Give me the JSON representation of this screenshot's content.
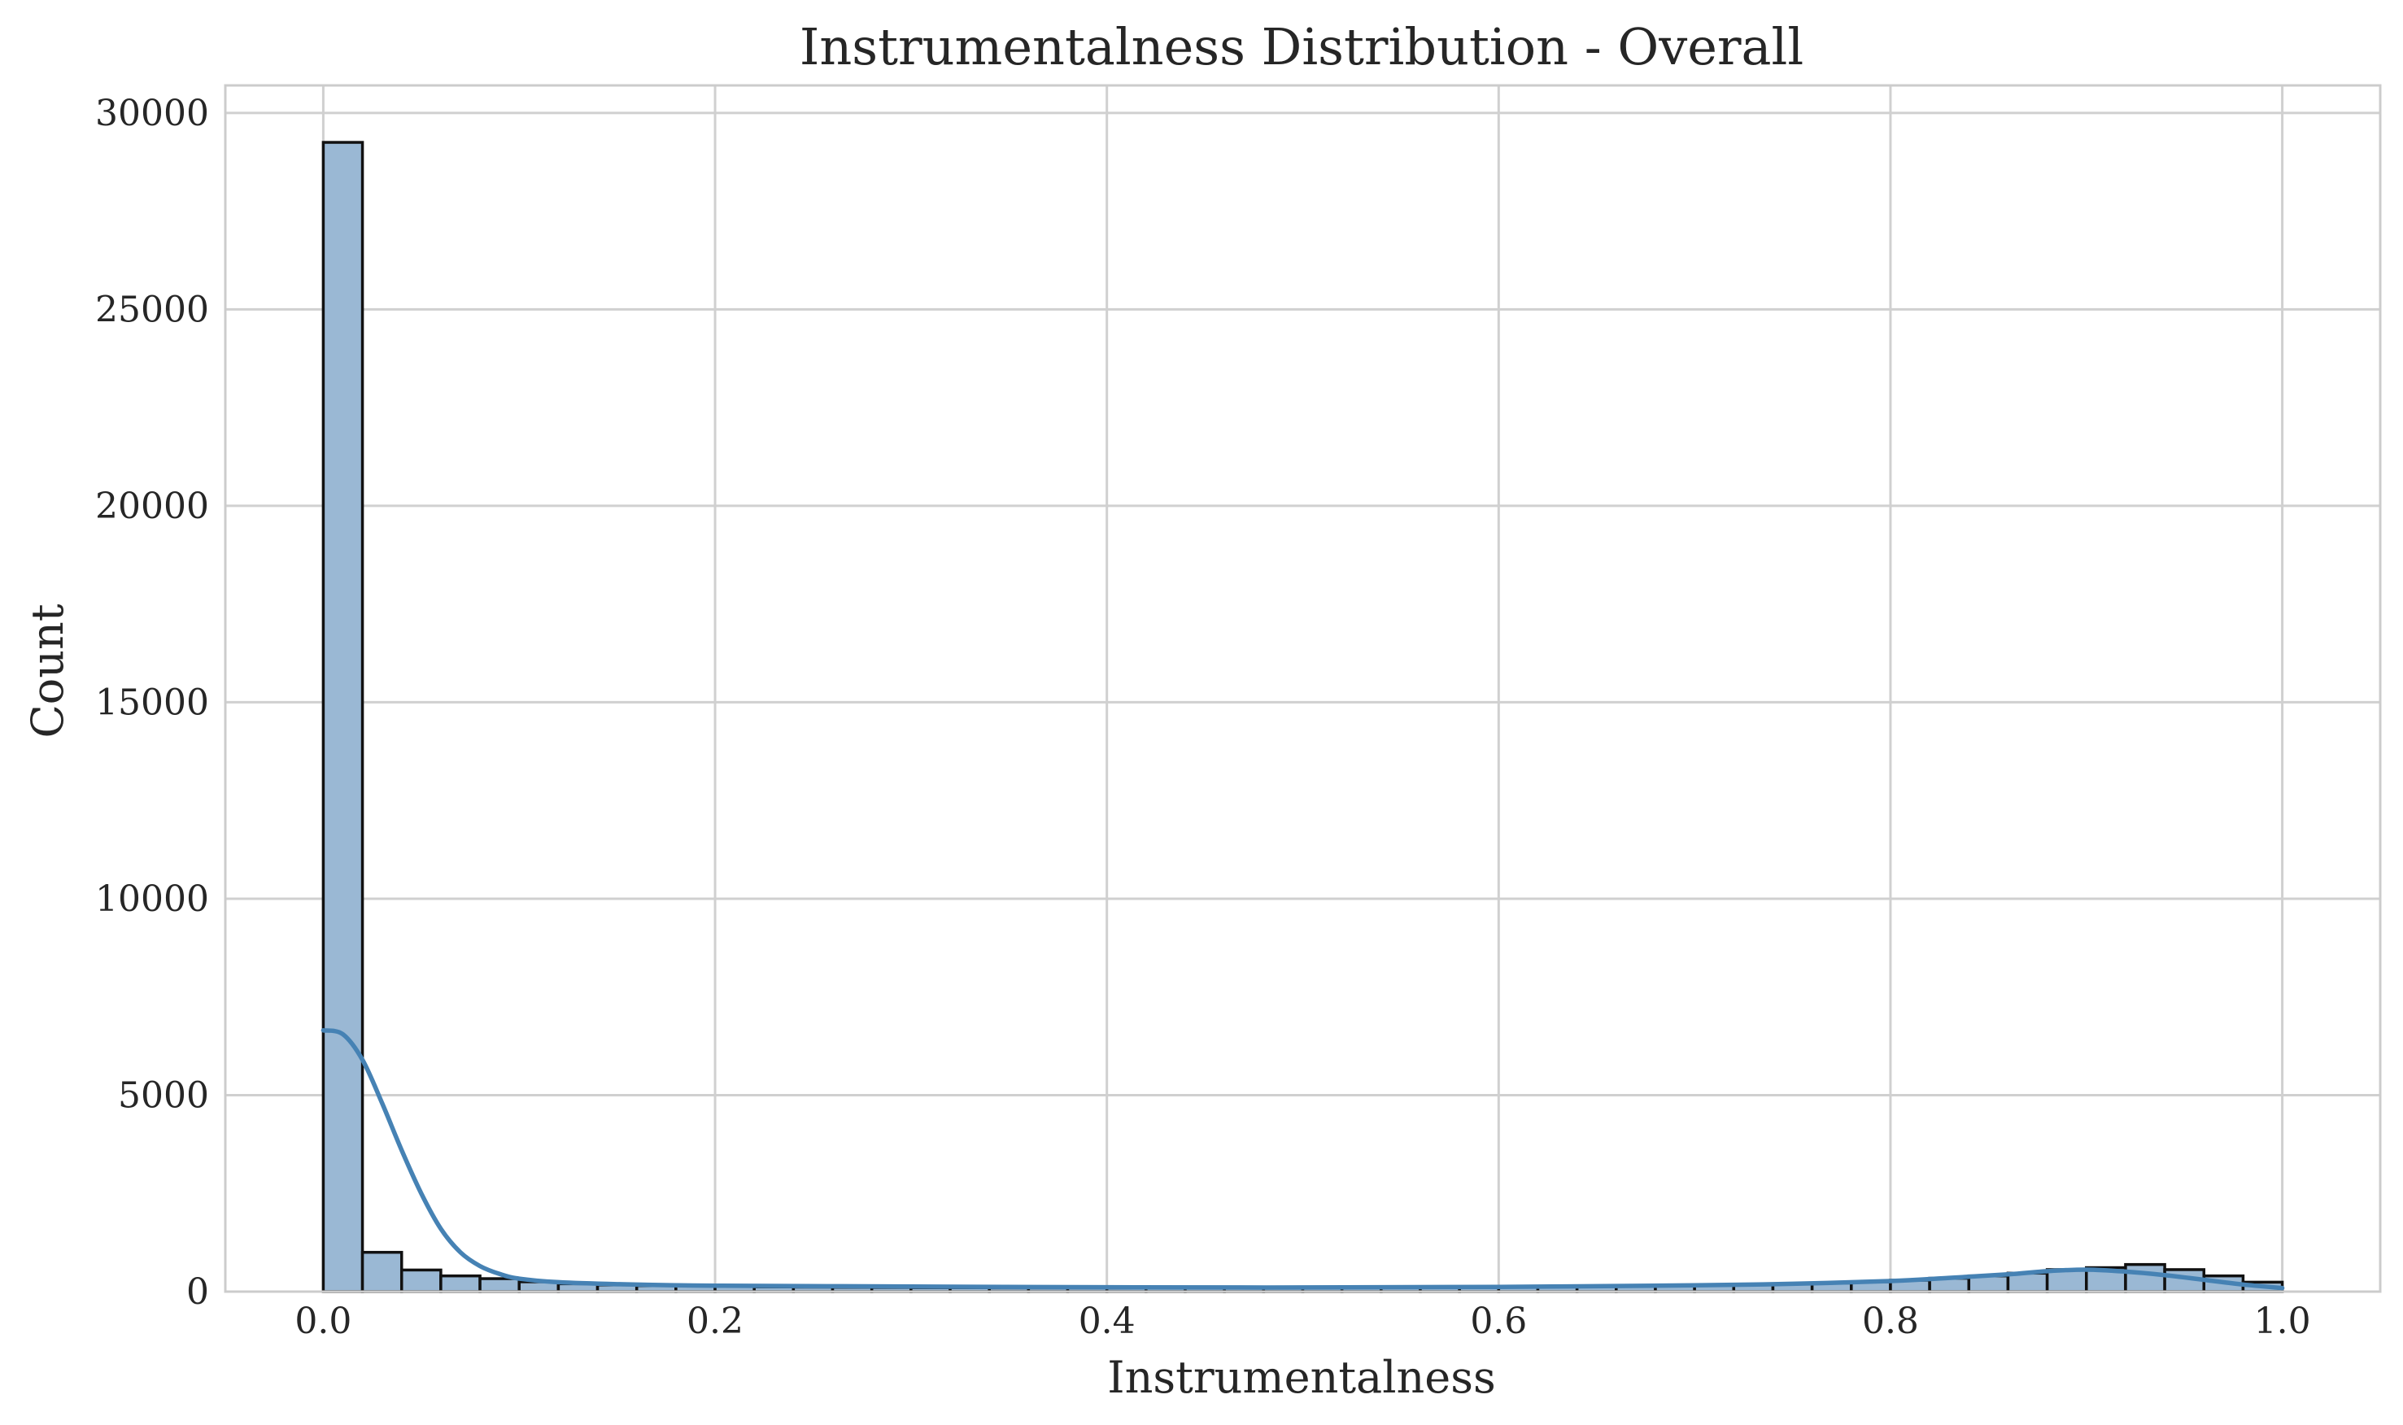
{
  "chart_data": {
    "type": "bar",
    "title": "Instrumentalness Distribution - Overall",
    "xlabel": "Instrumentalness",
    "ylabel": "Count",
    "xlim": [
      -0.05,
      1.05
    ],
    "ylim": [
      0,
      30700
    ],
    "xticks": [
      0.0,
      0.2,
      0.4,
      0.6,
      0.8,
      1.0
    ],
    "xtick_labels": [
      "0.0",
      "0.2",
      "0.4",
      "0.6",
      "0.8",
      "1.0"
    ],
    "yticks": [
      0,
      5000,
      10000,
      15000,
      20000,
      25000,
      30000
    ],
    "ytick_labels": [
      "0",
      "5000",
      "10000",
      "15000",
      "20000",
      "25000",
      "30000"
    ],
    "grid": true,
    "bar_color": "#9ab8d4",
    "edge_color": "#111111",
    "kde_color": "#4682b4",
    "bins": {
      "start": 0.0,
      "width": 0.02,
      "counts": [
        29250,
        1000,
        550,
        400,
        330,
        250,
        200,
        170,
        150,
        140,
        130,
        120,
        115,
        110,
        105,
        100,
        100,
        95,
        95,
        95,
        90,
        90,
        90,
        90,
        95,
        95,
        100,
        100,
        105,
        110,
        115,
        120,
        130,
        140,
        150,
        165,
        180,
        200,
        220,
        250,
        290,
        340,
        400,
        470,
        560,
        610,
        690,
        560,
        400,
        240
      ]
    },
    "kde": {
      "x": [
        0.0,
        0.01,
        0.02,
        0.03,
        0.04,
        0.05,
        0.06,
        0.07,
        0.08,
        0.09,
        0.1,
        0.12,
        0.15,
        0.2,
        0.3,
        0.4,
        0.5,
        0.6,
        0.7,
        0.75,
        0.8,
        0.83,
        0.86,
        0.88,
        0.9,
        0.92,
        0.94,
        0.96,
        0.98,
        1.0
      ],
      "y": [
        6650,
        6550,
        5900,
        4800,
        3600,
        2500,
        1600,
        1000,
        650,
        450,
        330,
        240,
        190,
        150,
        130,
        110,
        105,
        120,
        160,
        200,
        270,
        350,
        440,
        520,
        560,
        510,
        420,
        300,
        180,
        90
      ]
    }
  }
}
